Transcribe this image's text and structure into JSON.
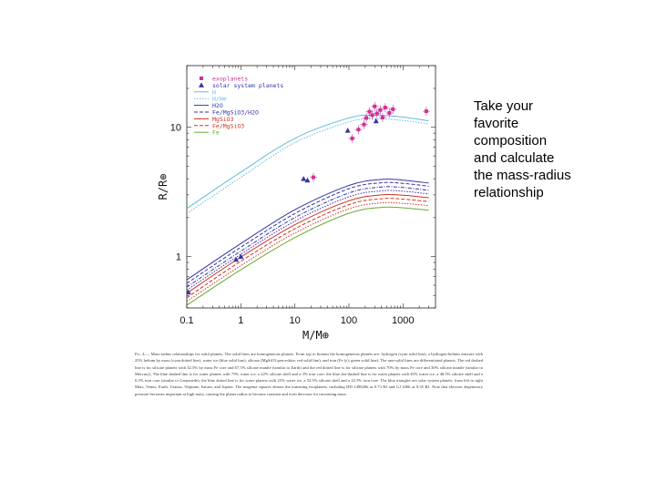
{
  "side_text": "Take your\nfavorite\ncomposition\nand calculate\nthe mass-radius\nrelationship",
  "caption": {
    "label": "Fig. 4.—",
    "text": "Mass-radius relationships for solid planets. The solid lines are homogeneous planets. From top to bottom the homogeneous planets are: hydrogen (cyan solid line), a hydrogen-helium mixture with 25% helium by mass (cyan dotted line), water ice (blue solid line), silicate (MgSiO3 perovskite; red solid line), and iron (Fe (ε); green solid line). The non-solid lines are differentiated planets. The red dashed line is for silicate planets with 32.5% by mass Fe core and 67.5% silicate mantle (similar to Earth) and the red dotted line is for silicate planets with 70% by mass Fe core and 30% silicate mantle (similar to Mercury). The blue dashed line is for water planets with 75% water ice, a 22% silicate shell and a 3% iron core; the blue dot-dashed line is for water planets with 45% water ice, a 48.5% silicate shell and a 6.5% iron core (similar to Ganymede); the blue dotted line is for water planets with 25% water ice, a 52.5% silicate shell and a 22.5% iron core. The blue triangles are solar system planets: from left to right Mars, Venus, Earth, Uranus, Neptune, Saturn, and Jupiter. The magenta squares denote the transiting exoplanets, including HD 149026b at 0.73 RJ and GJ 436b at 0.35 RJ. Note that electron degeneracy pressure becomes important at high mass, causing the planet radius to become constant and even decrease for increasing mass."
  },
  "chart_data": {
    "type": "line",
    "xscale": "log",
    "yscale": "log",
    "xlim": [
      0.1,
      4000
    ],
    "ylim": [
      0.4,
      30
    ],
    "xlabel": "M/M⊕",
    "ylabel": "R/R⊕",
    "xticks": [
      "0.1",
      "1",
      "10",
      "100",
      "1000"
    ],
    "yticks": [
      "1",
      "10"
    ],
    "legend_position": "top-left",
    "legend": [
      {
        "label": "exoplanets",
        "color": "#cc3399",
        "marker": "square"
      },
      {
        "label": "solar system planets",
        "color": "#3333aa",
        "marker": "triangle"
      },
      {
        "label": "H",
        "color": "#66bbdd",
        "style": "solid"
      },
      {
        "label": "H/He",
        "color": "#66bbdd",
        "style": "dotted"
      },
      {
        "label": "H2O",
        "color": "#3333aa",
        "style": "solid"
      },
      {
        "label": "Fe/MgSiO3/H2O",
        "color": "#3333aa",
        "style": "dashed"
      },
      {
        "label": "MgSiO3",
        "color": "#cc3322",
        "style": "solid"
      },
      {
        "label": "Fe/MgSiO3",
        "color": "#cc3322",
        "style": "dashed"
      },
      {
        "label": "Fe",
        "color": "#66aa33",
        "style": "solid"
      }
    ],
    "curves": [
      {
        "color": "#66bbdd",
        "dash": "",
        "points": [
          [
            0.1,
            2.35
          ],
          [
            1,
            4.5
          ],
          [
            10,
            8.2
          ],
          [
            100,
            11.8
          ],
          [
            300,
            12.4
          ],
          [
            1000,
            12.0
          ],
          [
            3000,
            11.2
          ]
        ]
      },
      {
        "color": "#66bbdd",
        "dash": "1.5,1.5",
        "points": [
          [
            0.1,
            2.15
          ],
          [
            1,
            4.1
          ],
          [
            10,
            7.6
          ],
          [
            100,
            11.0
          ],
          [
            300,
            11.6
          ],
          [
            1000,
            11.3
          ],
          [
            3000,
            10.6
          ]
        ]
      },
      {
        "color": "#3333aa",
        "dash": "",
        "points": [
          [
            0.1,
            0.66
          ],
          [
            1,
            1.26
          ],
          [
            10,
            2.3
          ],
          [
            100,
            3.55
          ],
          [
            400,
            3.95
          ],
          [
            1000,
            3.9
          ],
          [
            3000,
            3.7
          ]
        ]
      },
      {
        "color": "#3333aa",
        "dash": "4,2",
        "points": [
          [
            0.1,
            0.62
          ],
          [
            1,
            1.18
          ],
          [
            10,
            2.15
          ],
          [
            100,
            3.35
          ],
          [
            400,
            3.72
          ],
          [
            1000,
            3.68
          ],
          [
            3000,
            3.5
          ]
        ]
      },
      {
        "color": "#3333aa",
        "dash": "4,1.5,1,1.5",
        "points": [
          [
            0.1,
            0.58
          ],
          [
            1,
            1.1
          ],
          [
            10,
            2.0
          ],
          [
            100,
            3.1
          ],
          [
            400,
            3.45
          ],
          [
            1000,
            3.42
          ],
          [
            3000,
            3.25
          ]
        ]
      },
      {
        "color": "#3333aa",
        "dash": "1.5,1.5",
        "points": [
          [
            0.1,
            0.55
          ],
          [
            1,
            1.04
          ],
          [
            10,
            1.88
          ],
          [
            100,
            2.9
          ],
          [
            400,
            3.22
          ],
          [
            1000,
            3.2
          ],
          [
            3000,
            3.05
          ]
        ]
      },
      {
        "color": "#cc3322",
        "dash": "",
        "points": [
          [
            0.1,
            0.52
          ],
          [
            1,
            0.99
          ],
          [
            10,
            1.76
          ],
          [
            100,
            2.7
          ],
          [
            400,
            3.0
          ],
          [
            1000,
            2.98
          ],
          [
            3000,
            2.85
          ]
        ]
      },
      {
        "color": "#cc3322",
        "dash": "4,2",
        "points": [
          [
            0.1,
            0.48
          ],
          [
            1,
            0.92
          ],
          [
            10,
            1.64
          ],
          [
            100,
            2.52
          ],
          [
            400,
            2.8
          ],
          [
            1000,
            2.78
          ],
          [
            3000,
            2.66
          ]
        ]
      },
      {
        "color": "#cc3322",
        "dash": "1.5,1.5",
        "points": [
          [
            0.1,
            0.45
          ],
          [
            1,
            0.85
          ],
          [
            10,
            1.52
          ],
          [
            100,
            2.34
          ],
          [
            400,
            2.6
          ],
          [
            1000,
            2.58
          ],
          [
            3000,
            2.48
          ]
        ]
      },
      {
        "color": "#66aa33",
        "dash": "",
        "points": [
          [
            0.1,
            0.42
          ],
          [
            1,
            0.79
          ],
          [
            10,
            1.4
          ],
          [
            100,
            2.16
          ],
          [
            400,
            2.4
          ],
          [
            1000,
            2.38
          ],
          [
            3000,
            2.28
          ]
        ]
      }
    ],
    "solar_system_planets": [
      {
        "x": 0.107,
        "y": 0.53
      },
      {
        "x": 0.815,
        "y": 0.95
      },
      {
        "x": 1.0,
        "y": 1.0
      },
      {
        "x": 14.5,
        "y": 4.0
      },
      {
        "x": 17.1,
        "y": 3.9
      },
      {
        "x": 95,
        "y": 9.45
      },
      {
        "x": 318,
        "y": 11.2
      }
    ],
    "exoplanets": [
      {
        "x": 22,
        "y": 4.1
      },
      {
        "x": 115,
        "y": 8.2
      },
      {
        "x": 150,
        "y": 9.6
      },
      {
        "x": 190,
        "y": 10.5
      },
      {
        "x": 210,
        "y": 11.8
      },
      {
        "x": 240,
        "y": 13.2
      },
      {
        "x": 270,
        "y": 12.4
      },
      {
        "x": 300,
        "y": 14.5
      },
      {
        "x": 330,
        "y": 12.8
      },
      {
        "x": 380,
        "y": 13.6
      },
      {
        "x": 420,
        "y": 11.9
      },
      {
        "x": 470,
        "y": 14.2
      },
      {
        "x": 560,
        "y": 12.9
      },
      {
        "x": 650,
        "y": 13.8
      },
      {
        "x": 2700,
        "y": 13.3
      }
    ]
  }
}
